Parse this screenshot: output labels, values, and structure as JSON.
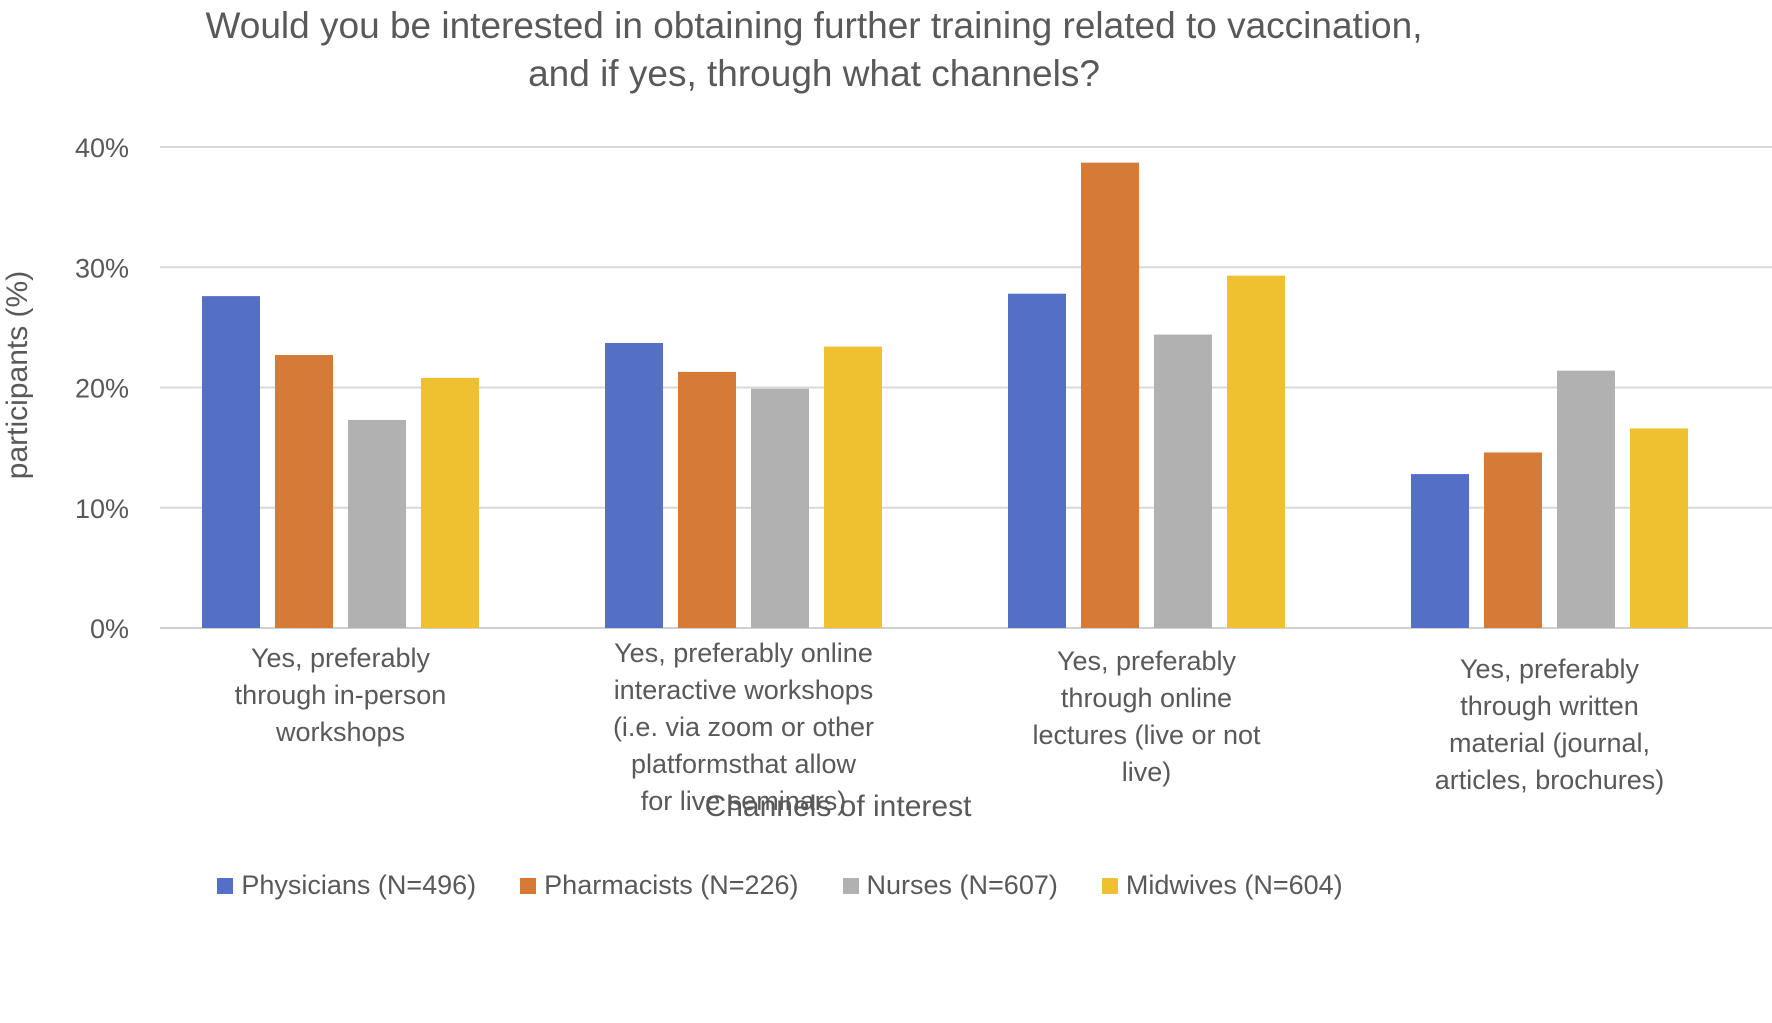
{
  "chart_data": {
    "type": "bar",
    "title": "Would you be interested in obtaining further training related to vaccination, and if yes, through what channels?",
    "title_lines": [
      "Would you be interested in obtaining further training related to vaccination,",
      "and if yes, through what channels?"
    ],
    "xlabel": "Channels of interest",
    "ylabel": "participants (%)",
    "ylim": [
      0,
      40
    ],
    "yticks": [
      "0%",
      "10%",
      "20%",
      "30%",
      "40%"
    ],
    "grid": true,
    "legend_position": "bottom",
    "categories": [
      "Yes, preferably through in-person workshops",
      "Yes, preferably online interactive workshops (i.e. via zoom or other platformsthat allow for live seminars)",
      "Yes, preferably through online lectures (live or not live)",
      "Yes, preferably through written material (journal, articles, brochures)"
    ],
    "category_lines": [
      [
        "Yes, preferably",
        "through in-person",
        "workshops"
      ],
      [
        "Yes, preferably online",
        "interactive workshops",
        "(i.e. via zoom or other",
        "platformsthat allow",
        "for live seminars)"
      ],
      [
        "Yes, preferably",
        "through online",
        "lectures (live or not",
        "live)"
      ],
      [
        "Yes, preferably",
        "through written",
        "material (journal,",
        "articles, brochures)"
      ]
    ],
    "series": [
      {
        "name": "Physicians (N=496)",
        "color": "#5470C6",
        "values": [
          27.6,
          23.7,
          27.8,
          12.8
        ]
      },
      {
        "name": "Pharmacists (N=226)",
        "color": "#D67A38",
        "values": [
          22.7,
          21.3,
          38.7,
          14.6
        ]
      },
      {
        "name": "Nurses (N=607)",
        "color": "#B1B1B1",
        "values": [
          17.3,
          19.9,
          24.4,
          21.4
        ]
      },
      {
        "name": "Midwives (N=604)",
        "color": "#EFC030",
        "values": [
          20.8,
          23.4,
          29.3,
          16.6
        ]
      }
    ]
  }
}
